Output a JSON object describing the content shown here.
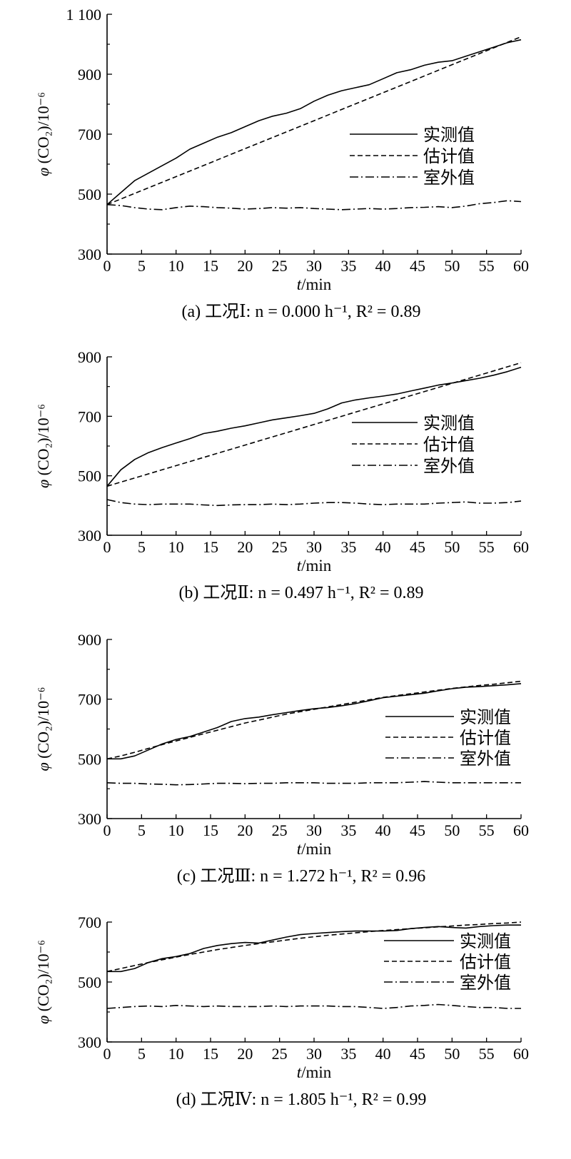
{
  "colors": {
    "ink": "#000000",
    "background": "#ffffff"
  },
  "chart_data": [
    {
      "type": "line",
      "caption": "(a) 工况Ⅰ: n = 0.000 h⁻¹, R² = 0.89",
      "xlabel": "t/min",
      "ylabel": "φ (CO₂)/10⁻⁶",
      "xlim": [
        0,
        60
      ],
      "ylim": [
        300,
        1100
      ],
      "xticks": [
        "0",
        "5",
        "10",
        "15",
        "20",
        "25",
        "30",
        "35",
        "40",
        "45",
        "50",
        "55",
        "60"
      ],
      "yticks": [
        "300",
        "500",
        "700",
        "900",
        "1 100"
      ],
      "grid": false,
      "legend_position": "right-center",
      "series": [
        {
          "name": "实测值",
          "line_style": "solid",
          "x": [
            0,
            2,
            4,
            6,
            8,
            10,
            12,
            14,
            16,
            18,
            20,
            22,
            24,
            26,
            28,
            30,
            32,
            34,
            36,
            38,
            40,
            42,
            44,
            46,
            48,
            50,
            52,
            54,
            56,
            58,
            60
          ],
          "y": [
            465,
            505,
            545,
            570,
            595,
            620,
            650,
            670,
            690,
            705,
            725,
            745,
            760,
            770,
            785,
            810,
            830,
            845,
            855,
            865,
            885,
            905,
            915,
            930,
            940,
            945,
            960,
            975,
            990,
            1005,
            1015
          ]
        },
        {
          "name": "估计值",
          "line_style": "dashed",
          "x": [
            0,
            60
          ],
          "y": [
            465,
            1025
          ]
        },
        {
          "name": "室外值",
          "line_style": "dashdot",
          "x": [
            0,
            2,
            4,
            6,
            8,
            10,
            12,
            14,
            16,
            18,
            20,
            22,
            24,
            26,
            28,
            30,
            32,
            34,
            36,
            38,
            40,
            42,
            44,
            46,
            48,
            50,
            52,
            54,
            56,
            58,
            60
          ],
          "y": [
            465,
            462,
            455,
            450,
            448,
            455,
            460,
            458,
            455,
            453,
            450,
            452,
            455,
            453,
            455,
            452,
            450,
            448,
            450,
            452,
            450,
            452,
            455,
            456,
            458,
            455,
            460,
            468,
            472,
            478,
            475
          ]
        }
      ]
    },
    {
      "type": "line",
      "caption": "(b) 工况Ⅱ: n = 0.497 h⁻¹, R² = 0.89",
      "xlabel": "t/min",
      "ylabel": "φ (CO₂)/10⁻⁶",
      "xlim": [
        0,
        60
      ],
      "ylim": [
        300,
        900
      ],
      "xticks": [
        "0",
        "5",
        "10",
        "15",
        "20",
        "25",
        "30",
        "35",
        "40",
        "45",
        "50",
        "55",
        "60"
      ],
      "yticks": [
        "300",
        "500",
        "700",
        "900"
      ],
      "grid": false,
      "legend_position": "right-center",
      "series": [
        {
          "name": "实测值",
          "line_style": "solid",
          "x": [
            0,
            2,
            4,
            6,
            8,
            10,
            12,
            14,
            16,
            18,
            20,
            22,
            24,
            26,
            28,
            30,
            32,
            34,
            36,
            38,
            40,
            42,
            44,
            46,
            48,
            50,
            52,
            54,
            56,
            58,
            60
          ],
          "y": [
            465,
            520,
            555,
            578,
            595,
            610,
            625,
            642,
            650,
            660,
            668,
            678,
            688,
            695,
            702,
            710,
            725,
            745,
            755,
            762,
            768,
            775,
            785,
            795,
            805,
            812,
            820,
            828,
            838,
            850,
            865
          ]
        },
        {
          "name": "估计值",
          "line_style": "dashed",
          "x": [
            0,
            60
          ],
          "y": [
            465,
            880
          ]
        },
        {
          "name": "室外值",
          "line_style": "dashdot",
          "x": [
            0,
            2,
            4,
            6,
            8,
            10,
            12,
            14,
            16,
            18,
            20,
            22,
            24,
            26,
            28,
            30,
            32,
            34,
            36,
            38,
            40,
            42,
            44,
            46,
            48,
            50,
            52,
            54,
            56,
            58,
            60
          ],
          "y": [
            420,
            410,
            405,
            403,
            405,
            405,
            405,
            402,
            400,
            402,
            403,
            403,
            405,
            403,
            405,
            408,
            410,
            410,
            408,
            405,
            403,
            405,
            405,
            405,
            408,
            410,
            412,
            408,
            408,
            410,
            415
          ]
        }
      ]
    },
    {
      "type": "line",
      "caption": "(c) 工况Ⅲ: n = 1.272 h⁻¹, R² = 0.96",
      "xlabel": "t/min",
      "ylabel": "φ (CO₂)/10⁻⁶",
      "xlim": [
        0,
        60
      ],
      "ylim": [
        300,
        900
      ],
      "xticks": [
        "0",
        "5",
        "10",
        "15",
        "20",
        "25",
        "30",
        "35",
        "40",
        "45",
        "50",
        "55",
        "60"
      ],
      "yticks": [
        "300",
        "500",
        "700",
        "900"
      ],
      "grid": false,
      "legend_position": "right-center",
      "series": [
        {
          "name": "实测值",
          "line_style": "solid",
          "x": [
            0,
            2,
            4,
            6,
            8,
            10,
            12,
            14,
            16,
            18,
            20,
            22,
            24,
            26,
            28,
            30,
            32,
            34,
            36,
            38,
            40,
            42,
            44,
            46,
            48,
            50,
            52,
            54,
            56,
            58,
            60
          ],
          "y": [
            500,
            500,
            510,
            530,
            550,
            565,
            575,
            590,
            605,
            625,
            635,
            640,
            648,
            655,
            662,
            668,
            672,
            678,
            685,
            695,
            705,
            710,
            715,
            720,
            728,
            735,
            740,
            742,
            745,
            748,
            752
          ]
        },
        {
          "name": "估计值",
          "line_style": "dashed",
          "x": [
            0,
            2,
            4,
            6,
            8,
            10,
            12,
            14,
            16,
            18,
            20,
            22,
            24,
            26,
            28,
            30,
            32,
            34,
            36,
            38,
            40,
            42,
            44,
            46,
            48,
            50,
            52,
            54,
            56,
            58,
            60
          ],
          "y": [
            500,
            510,
            522,
            535,
            548,
            560,
            572,
            584,
            596,
            608,
            620,
            630,
            640,
            650,
            658,
            666,
            674,
            682,
            690,
            698,
            706,
            712,
            718,
            724,
            730,
            736,
            741,
            746,
            750,
            755,
            760
          ]
        },
        {
          "name": "室外值",
          "line_style": "dashdot",
          "x": [
            0,
            2,
            4,
            6,
            8,
            10,
            12,
            14,
            16,
            18,
            20,
            22,
            24,
            26,
            28,
            30,
            32,
            34,
            36,
            38,
            40,
            42,
            44,
            46,
            48,
            50,
            52,
            54,
            56,
            58,
            60
          ],
          "y": [
            420,
            418,
            418,
            416,
            415,
            413,
            414,
            416,
            418,
            418,
            417,
            418,
            418,
            420,
            420,
            420,
            418,
            418,
            418,
            420,
            420,
            420,
            422,
            424,
            422,
            420,
            420,
            420,
            420,
            420,
            420
          ]
        }
      ]
    },
    {
      "type": "line",
      "caption": "(d) 工况Ⅳ: n = 1.805 h⁻¹, R² = 0.99",
      "xlabel": "t/min",
      "ylabel": "φ (CO₂)/10⁻⁶",
      "xlim": [
        0,
        60
      ],
      "ylim": [
        300,
        700
      ],
      "xticks": [
        "0",
        "5",
        "10",
        "15",
        "20",
        "25",
        "30",
        "35",
        "40",
        "45",
        "50",
        "55",
        "60"
      ],
      "yticks": [
        "300",
        "500",
        "700"
      ],
      "grid": false,
      "legend_position": "right-center",
      "series": [
        {
          "name": "实测值",
          "line_style": "solid",
          "x": [
            0,
            2,
            4,
            6,
            8,
            10,
            12,
            14,
            16,
            18,
            20,
            22,
            24,
            26,
            28,
            30,
            32,
            34,
            36,
            38,
            40,
            42,
            44,
            46,
            48,
            50,
            52,
            54,
            56,
            58,
            60
          ],
          "y": [
            535,
            535,
            545,
            565,
            578,
            585,
            595,
            612,
            622,
            628,
            632,
            630,
            640,
            650,
            658,
            662,
            665,
            668,
            670,
            670,
            670,
            672,
            678,
            682,
            685,
            682,
            680,
            685,
            688,
            690,
            690
          ]
        },
        {
          "name": "估计值",
          "line_style": "dashed",
          "x": [
            0,
            2,
            4,
            6,
            8,
            10,
            12,
            14,
            16,
            18,
            20,
            22,
            24,
            26,
            28,
            30,
            32,
            34,
            36,
            38,
            40,
            42,
            44,
            46,
            48,
            50,
            52,
            54,
            56,
            58,
            60
          ],
          "y": [
            535,
            545,
            555,
            565,
            574,
            583,
            592,
            600,
            608,
            615,
            622,
            628,
            634,
            640,
            646,
            651,
            656,
            660,
            664,
            668,
            672,
            675,
            678,
            681,
            684,
            687,
            690,
            692,
            695,
            697,
            700
          ]
        },
        {
          "name": "室外值",
          "line_style": "dashdot",
          "x": [
            0,
            2,
            4,
            6,
            8,
            10,
            12,
            14,
            16,
            18,
            20,
            22,
            24,
            26,
            28,
            30,
            32,
            34,
            36,
            38,
            40,
            42,
            44,
            46,
            48,
            50,
            52,
            54,
            56,
            58,
            60
          ],
          "y": [
            412,
            415,
            418,
            420,
            418,
            422,
            420,
            418,
            420,
            418,
            418,
            418,
            420,
            418,
            420,
            420,
            420,
            418,
            418,
            415,
            412,
            415,
            420,
            422,
            425,
            422,
            418,
            415,
            415,
            412,
            412
          ]
        }
      ]
    }
  ]
}
